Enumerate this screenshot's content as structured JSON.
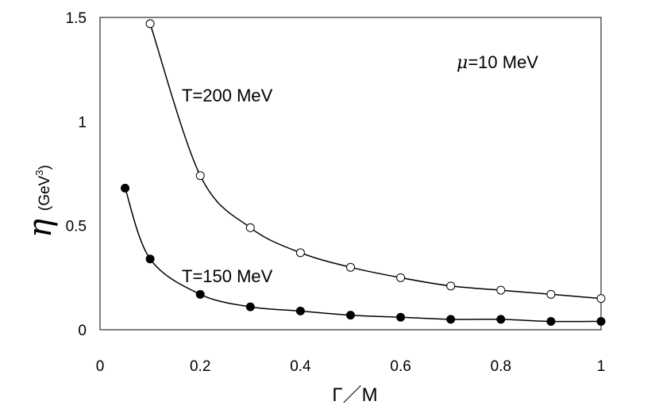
{
  "chart_data": {
    "type": "line",
    "xlabel": "Γ／M",
    "ylabel_symbol": "η",
    "ylabel_unit": "(GeV",
    "ylabel_unit_sup": "3",
    "ylabel_unit_close": ")",
    "xlim": [
      0,
      1
    ],
    "ylim": [
      0,
      1.5
    ],
    "xticks": [
      "0",
      "0.2",
      "0.4",
      "0.6",
      "0.8",
      "1"
    ],
    "yticks": [
      "0",
      "0.5",
      "1",
      "1.5"
    ],
    "grid": false,
    "annotation": {
      "symbol": "μ",
      "text": "=10 MeV"
    },
    "series": [
      {
        "name": "T=200 MeV",
        "marker": "open-circle",
        "x": [
          0.1,
          0.2,
          0.3,
          0.4,
          0.5,
          0.6,
          0.7,
          0.8,
          0.9,
          1.0
        ],
        "y": [
          1.47,
          0.74,
          0.49,
          0.37,
          0.3,
          0.25,
          0.21,
          0.19,
          0.17,
          0.15
        ]
      },
      {
        "name": "T=150 MeV",
        "marker": "filled-circle",
        "x": [
          0.05,
          0.1,
          0.2,
          0.3,
          0.4,
          0.5,
          0.6,
          0.7,
          0.8,
          0.9,
          1.0
        ],
        "y": [
          0.68,
          0.34,
          0.17,
          0.11,
          0.09,
          0.07,
          0.06,
          0.05,
          0.05,
          0.04,
          0.04
        ]
      }
    ]
  }
}
